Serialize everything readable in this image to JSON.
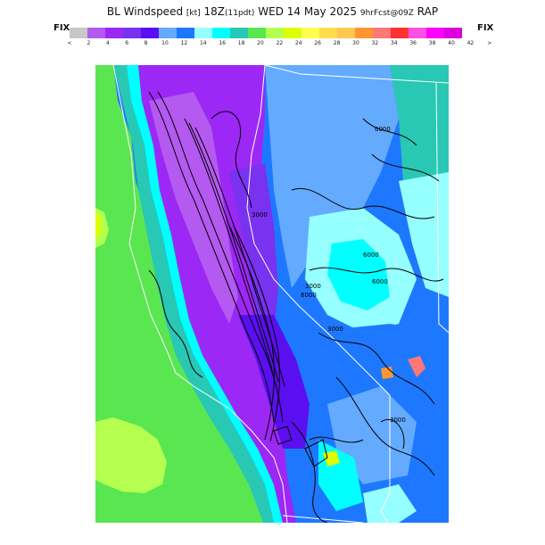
{
  "title": {
    "main": "BL Windspeed",
    "units": "[kt]",
    "time": "18Z",
    "local": "(11pdt)",
    "date": "WED 14 May 2025",
    "forecast": "9hrFcst@09Z",
    "model": "RAP"
  },
  "fix_left": "FIX",
  "fix_right": "FIX",
  "legend": {
    "colors": [
      "#c8c8c8",
      "#b45af0",
      "#9b28f5",
      "#7832f0",
      "#5a0ff0",
      "#64aaff",
      "#1e78ff",
      "#96ffff",
      "#00ffff",
      "#28c8b4",
      "#5ae650",
      "#b4ff50",
      "#ddff00",
      "#ffff50",
      "#ffdc50",
      "#ffc850",
      "#ff9632",
      "#ff7878",
      "#ff3232",
      "#ff50e6",
      "#ff00ff",
      "#dc00dc"
    ],
    "labels": [
      "<",
      "2",
      "4",
      "6",
      "8",
      "10",
      "12",
      "14",
      "16",
      "18",
      "20",
      "22",
      "24",
      "26",
      "28",
      "30",
      "32",
      "34",
      "36",
      "38",
      "40",
      "42",
      ">"
    ]
  },
  "contour_labels": [
    "6000",
    "6000",
    "3000",
    "6000",
    "3000",
    "3000",
    "3000",
    "6000"
  ]
}
